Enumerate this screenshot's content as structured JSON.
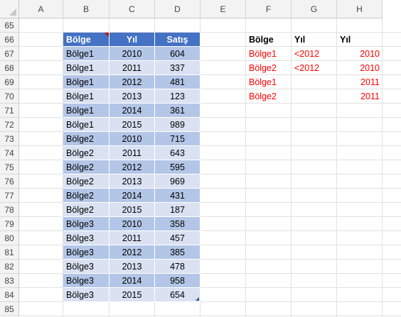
{
  "columns": [
    "A",
    "B",
    "C",
    "D",
    "E",
    "F",
    "G",
    "H"
  ],
  "rows": [
    "65",
    "66",
    "67",
    "68",
    "69",
    "70",
    "71",
    "72",
    "73",
    "74",
    "75",
    "76",
    "77",
    "78",
    "79",
    "80",
    "81",
    "82",
    "83",
    "84",
    "85"
  ],
  "table": {
    "headers": [
      "Bölge",
      "Yıl",
      "Satış"
    ],
    "rows": [
      [
        "Bölge1",
        "2010",
        "604"
      ],
      [
        "Bölge1",
        "2011",
        "337"
      ],
      [
        "Bölge1",
        "2012",
        "481"
      ],
      [
        "Bölge1",
        "2013",
        "123"
      ],
      [
        "Bölge1",
        "2014",
        "361"
      ],
      [
        "Bölge1",
        "2015",
        "989"
      ],
      [
        "Bölge2",
        "2010",
        "715"
      ],
      [
        "Bölge2",
        "2011",
        "643"
      ],
      [
        "Bölge2",
        "2012",
        "595"
      ],
      [
        "Bölge2",
        "2013",
        "969"
      ],
      [
        "Bölge2",
        "2014",
        "431"
      ],
      [
        "Bölge2",
        "2015",
        "187"
      ],
      [
        "Bölge3",
        "2010",
        "358"
      ],
      [
        "Bölge3",
        "2011",
        "457"
      ],
      [
        "Bölge3",
        "2012",
        "385"
      ],
      [
        "Bölge3",
        "2013",
        "478"
      ],
      [
        "Bölge3",
        "2014",
        "958"
      ],
      [
        "Bölge3",
        "2015",
        "654"
      ]
    ]
  },
  "criteria": {
    "headers": [
      "Bölge",
      "Yıl",
      "Yıl"
    ],
    "rows": [
      [
        "Bölge1",
        "<2012",
        "2010"
      ],
      [
        "Bölge2",
        "<2012",
        "2010"
      ],
      [
        "Bölge1",
        "",
        "2011"
      ],
      [
        "Bölge2",
        "",
        "2011"
      ]
    ]
  },
  "colors": {
    "table_header": "#4472c4",
    "band_dark": "#b4c6e7",
    "band_light": "#d9e1f2",
    "criteria_text": "#ff0000"
  }
}
